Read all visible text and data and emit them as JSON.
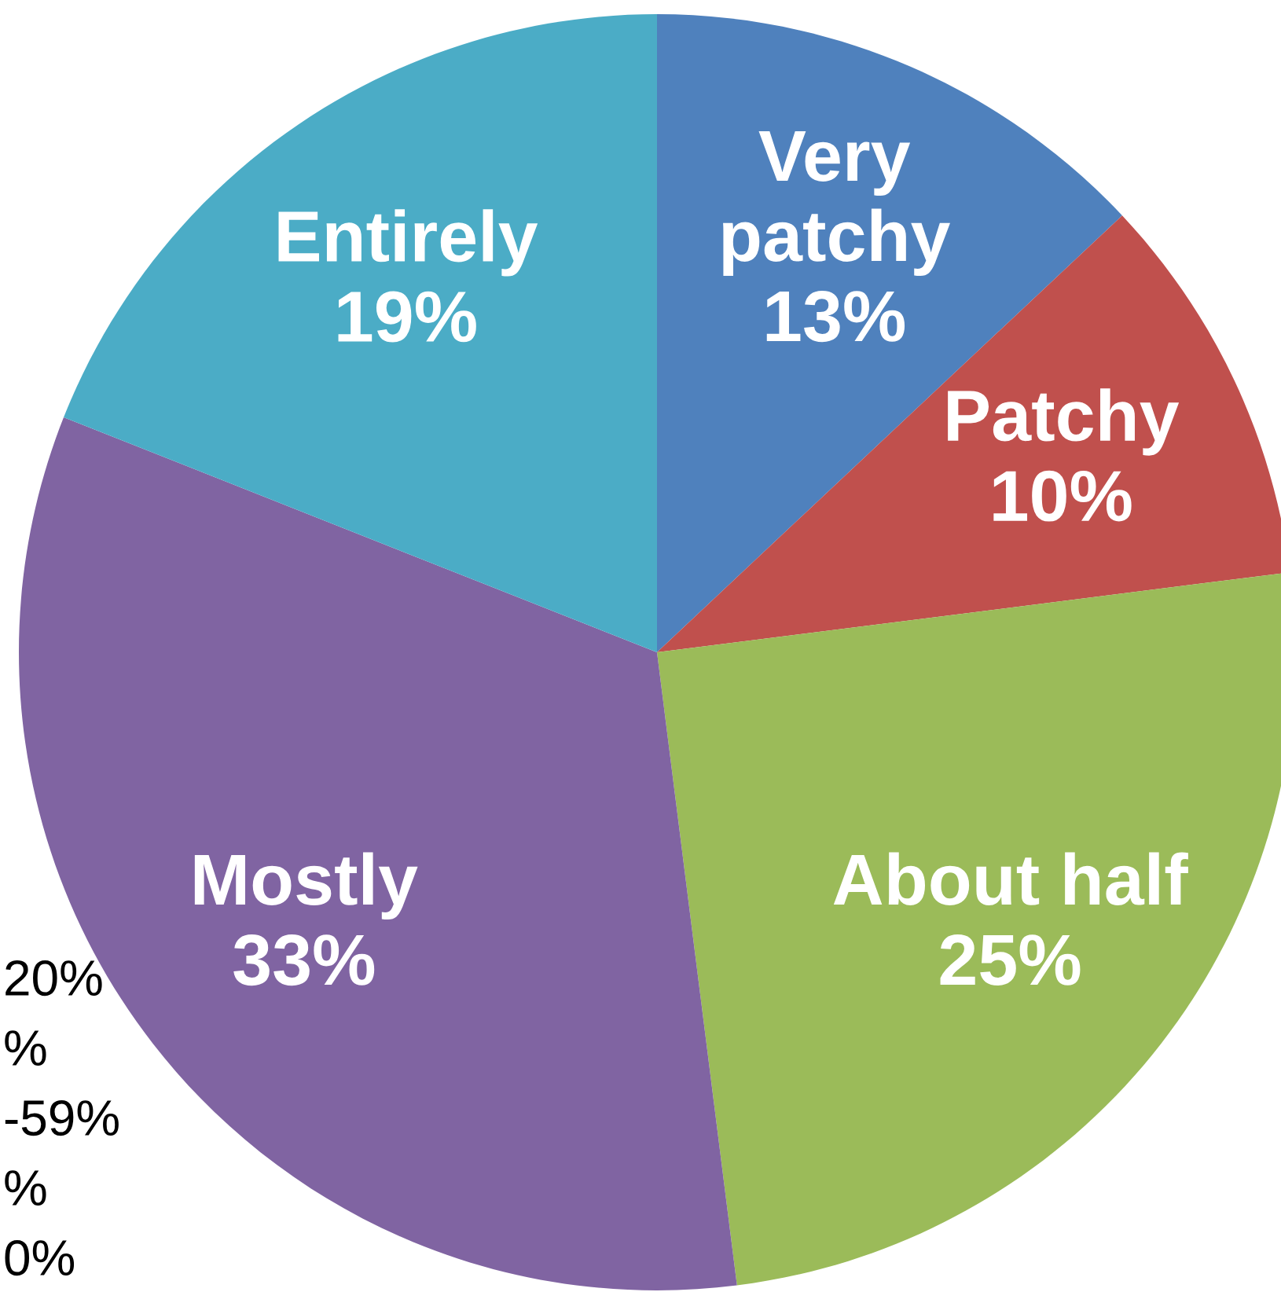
{
  "chart_data": {
    "type": "pie",
    "categories": [
      "Very patchy",
      "Patchy",
      "About half",
      "Mostly",
      "Entirely"
    ],
    "values": [
      13,
      10,
      25,
      33,
      19
    ],
    "value_labels": [
      "13%",
      "10%",
      "25%",
      "33%",
      "19%"
    ],
    "colors": [
      "#4f81bd",
      "#c0504d",
      "#9bbb59",
      "#8064a2",
      "#4bacc6"
    ],
    "annotations": [
      "20%",
      "%",
      "-59%",
      "%",
      "0%"
    ]
  }
}
